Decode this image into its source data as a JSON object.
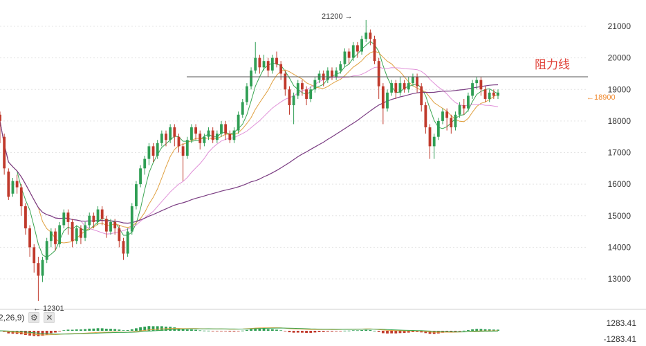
{
  "chart_data": {
    "type": "candlestick",
    "yaxis": {
      "ticks": [
        13000,
        14000,
        15000,
        16000,
        17000,
        18000,
        19000,
        20000,
        21000
      ],
      "range": [
        12000,
        21600
      ]
    },
    "annotations": {
      "resistance_label": "阻力线",
      "resistance_value": 19400,
      "high_label": "21200 →",
      "high_value": 21200,
      "low_label": "← 12301",
      "low_value": 12301,
      "current_label": "←18900",
      "current_value": 18900
    },
    "candles": [
      [
        18200,
        18000,
        18300,
        17300
      ],
      [
        17500,
        16500,
        17600,
        16300
      ],
      [
        16400,
        15600,
        16500,
        15500
      ],
      [
        15700,
        16100,
        16200,
        15600
      ],
      [
        16100,
        15900,
        16300,
        15700
      ],
      [
        15900,
        15300,
        16000,
        15000
      ],
      [
        15300,
        14600,
        15400,
        14400
      ],
      [
        14600,
        14000,
        14700,
        13700
      ],
      [
        14000,
        13500,
        14100,
        13200
      ],
      [
        13500,
        13100,
        13700,
        12301
      ],
      [
        13100,
        13600,
        13700,
        12900
      ],
      [
        13600,
        14200,
        14300,
        13500
      ],
      [
        14200,
        14500,
        14600,
        14000
      ],
      [
        14500,
        14100,
        14600,
        13900
      ],
      [
        14100,
        14700,
        14800,
        14000
      ],
      [
        14700,
        15100,
        15200,
        14600
      ],
      [
        15100,
        14800,
        15200,
        14400
      ],
      [
        14800,
        14200,
        14900,
        14000
      ],
      [
        14200,
        14600,
        14700,
        14100
      ],
      [
        14600,
        14300,
        14700,
        14100
      ],
      [
        14300,
        14700,
        14800,
        14200
      ],
      [
        14700,
        15000,
        15100,
        14600
      ],
      [
        15000,
        14800,
        15100,
        14600
      ],
      [
        14800,
        15200,
        15300,
        14700
      ],
      [
        15200,
        14900,
        15300,
        14700
      ],
      [
        14900,
        14500,
        15000,
        14300
      ],
      [
        14500,
        14800,
        14900,
        14400
      ],
      [
        14800,
        14600,
        14900,
        14400
      ],
      [
        14600,
        14200,
        14700,
        14000
      ],
      [
        14200,
        13800,
        14300,
        13600
      ],
      [
        13800,
        14500,
        14600,
        13700
      ],
      [
        14500,
        15300,
        15400,
        14400
      ],
      [
        15300,
        16000,
        16100,
        15200
      ],
      [
        16000,
        16500,
        16600,
        15900
      ],
      [
        16500,
        16800,
        16900,
        16300
      ],
      [
        16800,
        17200,
        17300,
        16600
      ],
      [
        17200,
        16900,
        17300,
        16700
      ],
      [
        16900,
        17300,
        17400,
        16800
      ],
      [
        17300,
        17600,
        17700,
        17200
      ],
      [
        17600,
        17400,
        17700,
        17200
      ],
      [
        17400,
        17800,
        17900,
        17300
      ],
      [
        17800,
        17500,
        17900,
        17200
      ],
      [
        17500,
        17200,
        17600,
        17000
      ],
      [
        17200,
        16900,
        17300,
        16100
      ],
      [
        16900,
        17400,
        17500,
        16800
      ],
      [
        17400,
        17800,
        17900,
        17300
      ],
      [
        17800,
        17600,
        17900,
        17400
      ],
      [
        17600,
        17300,
        17700,
        17100
      ],
      [
        17300,
        17500,
        17600,
        17200
      ],
      [
        17500,
        17700,
        17800,
        17400
      ],
      [
        17700,
        17400,
        17800,
        17300
      ],
      [
        17400,
        17600,
        17700,
        17300
      ],
      [
        17600,
        17900,
        18000,
        17500
      ],
      [
        17900,
        17600,
        18000,
        17400
      ],
      [
        17600,
        17400,
        17700,
        17300
      ],
      [
        17400,
        17700,
        17800,
        17300
      ],
      [
        17700,
        18200,
        18300,
        17600
      ],
      [
        18200,
        18600,
        18700,
        18100
      ],
      [
        18600,
        19100,
        19200,
        18500
      ],
      [
        19100,
        19600,
        19700,
        19000
      ],
      [
        19600,
        20000,
        20500,
        19500
      ],
      [
        20000,
        19700,
        20100,
        19500
      ],
      [
        19700,
        19900,
        20100,
        19600
      ],
      [
        19900,
        19600,
        20000,
        19400
      ],
      [
        19600,
        20000,
        20100,
        19500
      ],
      [
        20000,
        19800,
        20200,
        19700
      ],
      [
        19800,
        19500,
        19900,
        19300
      ],
      [
        19500,
        19000,
        19600,
        18800
      ],
      [
        19000,
        18500,
        19100,
        18200
      ],
      [
        18500,
        18800,
        18900,
        17900
      ],
      [
        18800,
        19200,
        19300,
        18700
      ],
      [
        19200,
        19000,
        19300,
        18800
      ],
      [
        19000,
        18700,
        19100,
        18500
      ],
      [
        18700,
        19000,
        19100,
        18600
      ],
      [
        19000,
        19300,
        19400,
        18900
      ],
      [
        19300,
        19500,
        19600,
        19200
      ],
      [
        19500,
        19300,
        19600,
        19100
      ],
      [
        19300,
        19600,
        19700,
        19200
      ],
      [
        19600,
        19400,
        19700,
        19300
      ],
      [
        19400,
        19600,
        19700,
        19300
      ],
      [
        19600,
        19800,
        19900,
        19500
      ],
      [
        19800,
        20200,
        20300,
        19700
      ],
      [
        20200,
        20000,
        20300,
        19800
      ],
      [
        20000,
        20400,
        20500,
        19900
      ],
      [
        20400,
        20200,
        20500,
        20000
      ],
      [
        20200,
        20600,
        20700,
        20100
      ],
      [
        20600,
        20800,
        21200,
        20500
      ],
      [
        20800,
        20600,
        20900,
        20400
      ],
      [
        20600,
        19900,
        20700,
        19800
      ],
      [
        19900,
        19100,
        20000,
        18700
      ],
      [
        19100,
        18400,
        19200,
        17900
      ],
      [
        18400,
        18900,
        19000,
        18300
      ],
      [
        18900,
        19200,
        19300,
        18800
      ],
      [
        19200,
        18900,
        19300,
        18700
      ],
      [
        18900,
        19200,
        19400,
        18800
      ],
      [
        19200,
        19000,
        19300,
        18900
      ],
      [
        19000,
        19200,
        19400,
        18900
      ],
      [
        19200,
        19400,
        19500,
        19100
      ],
      [
        19400,
        19100,
        19500,
        18900
      ],
      [
        19100,
        18500,
        19200,
        18300
      ],
      [
        18500,
        17800,
        18600,
        17600
      ],
      [
        17800,
        17200,
        17900,
        16800
      ],
      [
        17200,
        17500,
        17600,
        16800
      ],
      [
        17500,
        18000,
        18100,
        17400
      ],
      [
        18000,
        18300,
        18400,
        17900
      ],
      [
        18300,
        18100,
        18400,
        17700
      ],
      [
        18100,
        17800,
        18200,
        17600
      ],
      [
        17800,
        18200,
        18300,
        17700
      ],
      [
        18200,
        18500,
        18600,
        18100
      ],
      [
        18500,
        18400,
        18700,
        18200
      ],
      [
        18400,
        18800,
        18900,
        18300
      ],
      [
        18800,
        19200,
        19300,
        18700
      ],
      [
        19200,
        19300,
        19400,
        19000
      ],
      [
        19300,
        19000,
        19400,
        18800
      ],
      [
        19000,
        18700,
        19100,
        18600
      ],
      [
        18700,
        18900,
        19000,
        18600
      ],
      [
        18900,
        18800,
        19000,
        18700
      ],
      [
        18800,
        18900,
        19000,
        18700
      ]
    ]
  }
}
